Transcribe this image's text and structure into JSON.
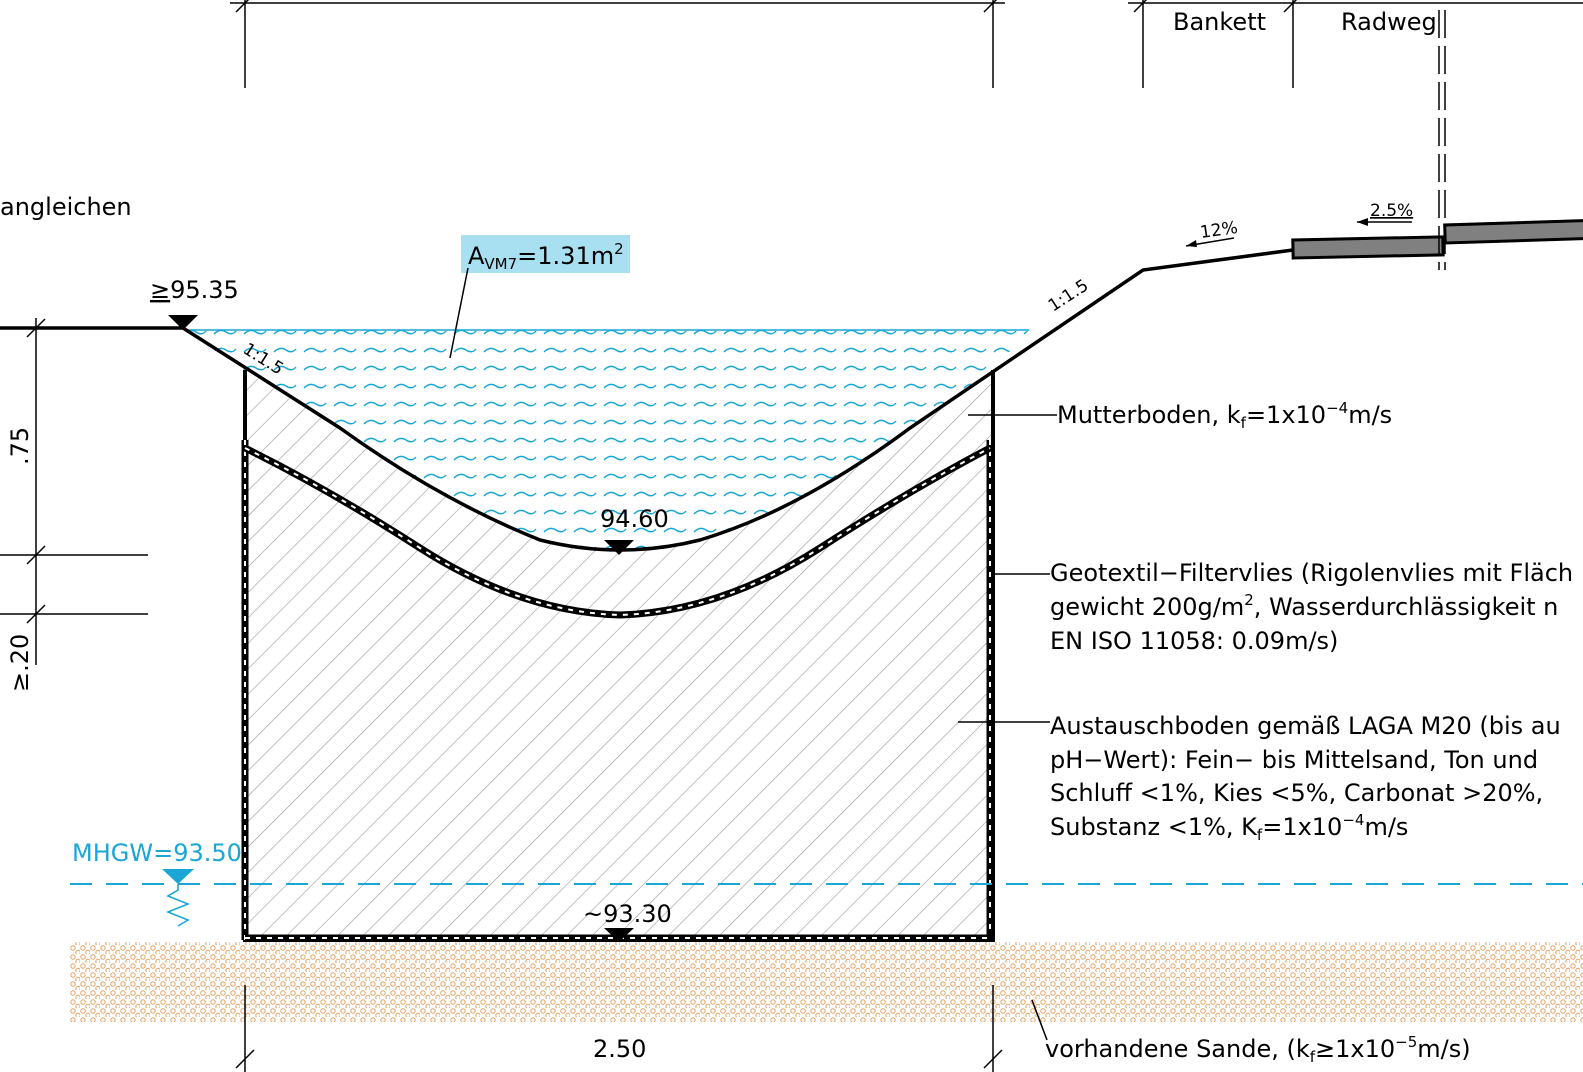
{
  "header": {
    "bankett": "Bankett",
    "radweg": "Radweg"
  },
  "left_note": "angleichen",
  "area_label": {
    "base": "A",
    "sub": "VM7",
    "value": "=1.31m",
    "sup": "2"
  },
  "elevations": {
    "top_prefix": "≥",
    "top": "95.35",
    "bottom_swale": "94.60",
    "base": "~93.30",
    "mhgw": "MHGW=93.50"
  },
  "slopes": {
    "left": "1:1.5",
    "right": "1:1.5",
    "shoulder": "12%",
    "bikepath": "2.5%"
  },
  "dimensions": {
    "depth": ".75",
    "min_thickness": "≥.20",
    "width": "2.50"
  },
  "callouts": {
    "mutterboden": {
      "text1": "Mutterboden,  k",
      "sub": "f",
      "text2": "=1x10",
      "sup": "−4",
      "text3": "m/s"
    },
    "geotextil": {
      "line1": "Geotextil−Filtervlies (Rigolenvlies mit Fläch",
      "line2a": "gewicht 200g/m",
      "line2sup": "2",
      "line2b": ", Wasserdurchlässigkeit n",
      "line3": "EN  ISO  11058:  0.09m/s)"
    },
    "austausch": {
      "line1": "Austauschboden gemäß LAGA M20 (bis au",
      "line2": "pH−Wert): Fein−  bis Mittelsand, Ton und",
      "line3": "Schluff  <1%,  Kies  <5%,  Carbonat  >20%,",
      "line4a": "Substanz  <1%,  K",
      "line4sub": "f",
      "line4b": "=1x10",
      "line4sup": "−4",
      "line4c": "m/s"
    },
    "sande": {
      "text1": "vorhandene Sande,  (k",
      "sub": "f",
      "text2": "≥1x10",
      "sup": "−5",
      "text3": "m/s)"
    }
  },
  "colors": {
    "water": "#1aa7d6",
    "water_label_bg": "#a8e0f2",
    "sand": "#e0a060",
    "line": "#000000"
  }
}
